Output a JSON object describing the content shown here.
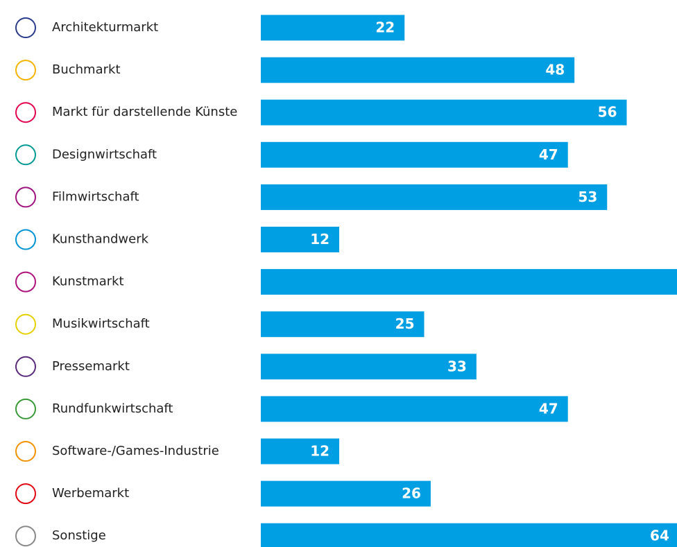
{
  "chart_data": {
    "type": "bar",
    "orientation": "horizontal",
    "color": "#009fe3",
    "categories": [
      "Architekturmarkt",
      "Buchmarkt",
      "Markt für darstellende Künste",
      "Designwirtschaft",
      "Filmwirtschaft",
      "Kunsthandwerk",
      "Kunstmarkt",
      "Musikwirtschaft",
      "Pressemarkt",
      "Rundfunkwirtschaft",
      "Software-/Games-Industrie",
      "Werbemarkt",
      "Sonstige"
    ],
    "values": [
      22,
      48,
      56,
      47,
      53,
      12,
      64,
      25,
      33,
      47,
      12,
      26,
      64
    ],
    "value_labels": [
      "22",
      "48",
      "56",
      "47",
      "53",
      "12",
      null,
      "25",
      "33",
      "47",
      "12",
      "26",
      "64"
    ]
  }
}
